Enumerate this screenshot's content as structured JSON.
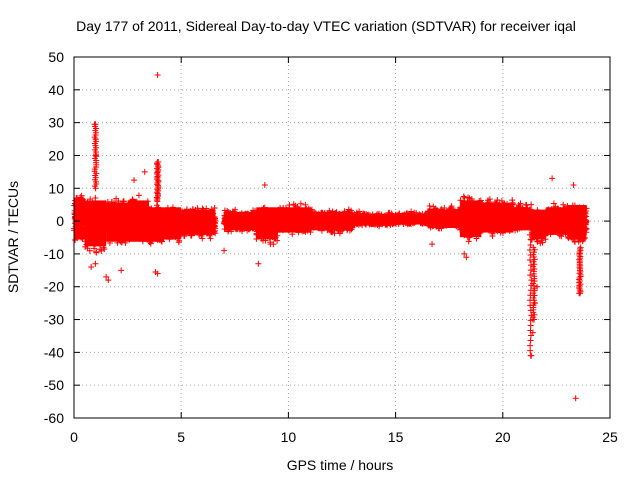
{
  "chart_data": {
    "type": "scatter",
    "title": "Day 177 of 2011, Sidereal Day-to-day VTEC variation (SDTVAR) for receiver iqal",
    "xlabel": "GPS time / hours",
    "ylabel": "SDTVAR / TECUs",
    "xlim": [
      0,
      25
    ],
    "ylim": [
      -60,
      50
    ],
    "xticks": [
      0,
      5,
      10,
      15,
      20,
      25
    ],
    "yticks": [
      -60,
      -50,
      -40,
      -30,
      -20,
      -10,
      0,
      10,
      20,
      30,
      40,
      50
    ],
    "grid": true,
    "marker": "+",
    "series": [
      {
        "name": "SDTVAR",
        "color": "#ff0000",
        "bands": [
          {
            "x": [
              0,
              0.5
            ],
            "lo": -8,
            "hi": 10
          },
          {
            "x": [
              0.5,
              1.5
            ],
            "lo": -11,
            "hi": 9
          },
          {
            "x": [
              1.5,
              2.5
            ],
            "lo": -9,
            "hi": 8
          },
          {
            "x": [
              2.5,
              3.5
            ],
            "lo": -9,
            "hi": 9
          },
          {
            "x": [
              3.5,
              4.2
            ],
            "lo": -9,
            "hi": 6
          },
          {
            "x": [
              4.2,
              5.0
            ],
            "lo": -8,
            "hi": 6
          },
          {
            "x": [
              5.0,
              6.6
            ],
            "lo": -6,
            "hi": 5
          },
          {
            "x": [
              7.0,
              8.5
            ],
            "lo": -4,
            "hi": 4
          },
          {
            "x": [
              8.5,
              9.5
            ],
            "lo": -8,
            "hi": 6
          },
          {
            "x": [
              9.5,
              11.0
            ],
            "lo": -5,
            "hi": 6
          },
          {
            "x": [
              11.0,
              13.0
            ],
            "lo": -4,
            "hi": 4
          },
          {
            "x": [
              13.0,
              15.0
            ],
            "lo": -2,
            "hi": 3
          },
          {
            "x": [
              15.0,
              16.5
            ],
            "lo": -1.5,
            "hi": 3
          },
          {
            "x": [
              16.5,
              18.0
            ],
            "lo": -3,
            "hi": 5
          },
          {
            "x": [
              18.0,
              19.0
            ],
            "lo": -7,
            "hi": 9
          },
          {
            "x": [
              19.0,
              20.5
            ],
            "lo": -5,
            "hi": 8
          },
          {
            "x": [
              20.5,
              21.3
            ],
            "lo": -4,
            "hi": 6
          },
          {
            "x": [
              21.3,
              22.0
            ],
            "lo": -8,
            "hi": 5
          },
          {
            "x": [
              22.0,
              23.0
            ],
            "lo": -6,
            "hi": 6
          },
          {
            "x": [
              23.0,
              23.9
            ],
            "lo": -8,
            "hi": 7
          }
        ],
        "outliers": [
          {
            "x": 3.9,
            "y": 44.5
          },
          {
            "x": 1.0,
            "y": 29.5
          },
          {
            "x": 1.0,
            "y": 25
          },
          {
            "x": 1.0,
            "y": 20
          },
          {
            "x": 3.9,
            "y": 18
          },
          {
            "x": 3.3,
            "y": 15
          },
          {
            "x": 2.8,
            "y": 12.5
          },
          {
            "x": 8.9,
            "y": 11
          },
          {
            "x": 22.3,
            "y": 13
          },
          {
            "x": 23.3,
            "y": 11
          },
          {
            "x": 0.8,
            "y": -14
          },
          {
            "x": 1.0,
            "y": -13
          },
          {
            "x": 1.5,
            "y": -17
          },
          {
            "x": 1.6,
            "y": -18
          },
          {
            "x": 2.2,
            "y": -15
          },
          {
            "x": 3.8,
            "y": -15.5
          },
          {
            "x": 3.9,
            "y": -16
          },
          {
            "x": 7.0,
            "y": -9
          },
          {
            "x": 8.6,
            "y": -13
          },
          {
            "x": 9.3,
            "y": -7
          },
          {
            "x": 16.7,
            "y": -7
          },
          {
            "x": 18.2,
            "y": -10
          },
          {
            "x": 18.3,
            "y": -11
          },
          {
            "x": 21.3,
            "y": -41
          },
          {
            "x": 21.4,
            "y": -34
          },
          {
            "x": 21.4,
            "y": -30
          },
          {
            "x": 21.5,
            "y": -25
          },
          {
            "x": 21.6,
            "y": -20
          },
          {
            "x": 23.6,
            "y": -22
          },
          {
            "x": 23.4,
            "y": -54
          }
        ]
      }
    ]
  }
}
